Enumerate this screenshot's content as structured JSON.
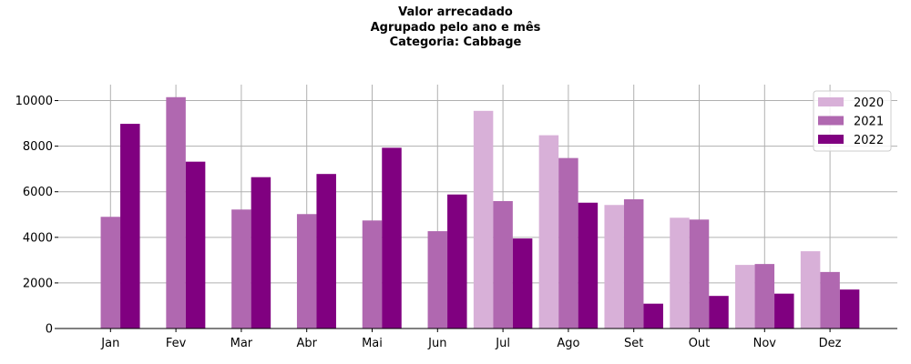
{
  "chart_data": {
    "type": "bar",
    "title_lines": [
      "Valor arrecadado",
      "Agrupado pelo ano e mês",
      "Categoria: Cabbage"
    ],
    "categories": [
      "Jan",
      "Fev",
      "Mar",
      "Abr",
      "Mai",
      "Jun",
      "Jul",
      "Ago",
      "Set",
      "Out",
      "Nov",
      "Dez"
    ],
    "series": [
      {
        "name": "2020",
        "color": "#d8b0d8",
        "values": [
          null,
          null,
          null,
          null,
          null,
          null,
          9550,
          8480,
          5420,
          4860,
          2790,
          3390
        ]
      },
      {
        "name": "2021",
        "color": "#b068b0",
        "values": [
          4900,
          10150,
          5220,
          5020,
          4740,
          4270,
          5590,
          7480,
          5670,
          4780,
          2830,
          2480
        ]
      },
      {
        "name": "2022",
        "color": "#800080",
        "values": [
          8980,
          7320,
          6640,
          6780,
          7930,
          5880,
          3950,
          5520,
          1090,
          1430,
          1530,
          1710
        ]
      }
    ],
    "yticks": [
      0,
      2000,
      4000,
      6000,
      8000,
      10000
    ],
    "ylim": [
      0,
      10700
    ],
    "grid": true,
    "legend_position": "top-right"
  }
}
